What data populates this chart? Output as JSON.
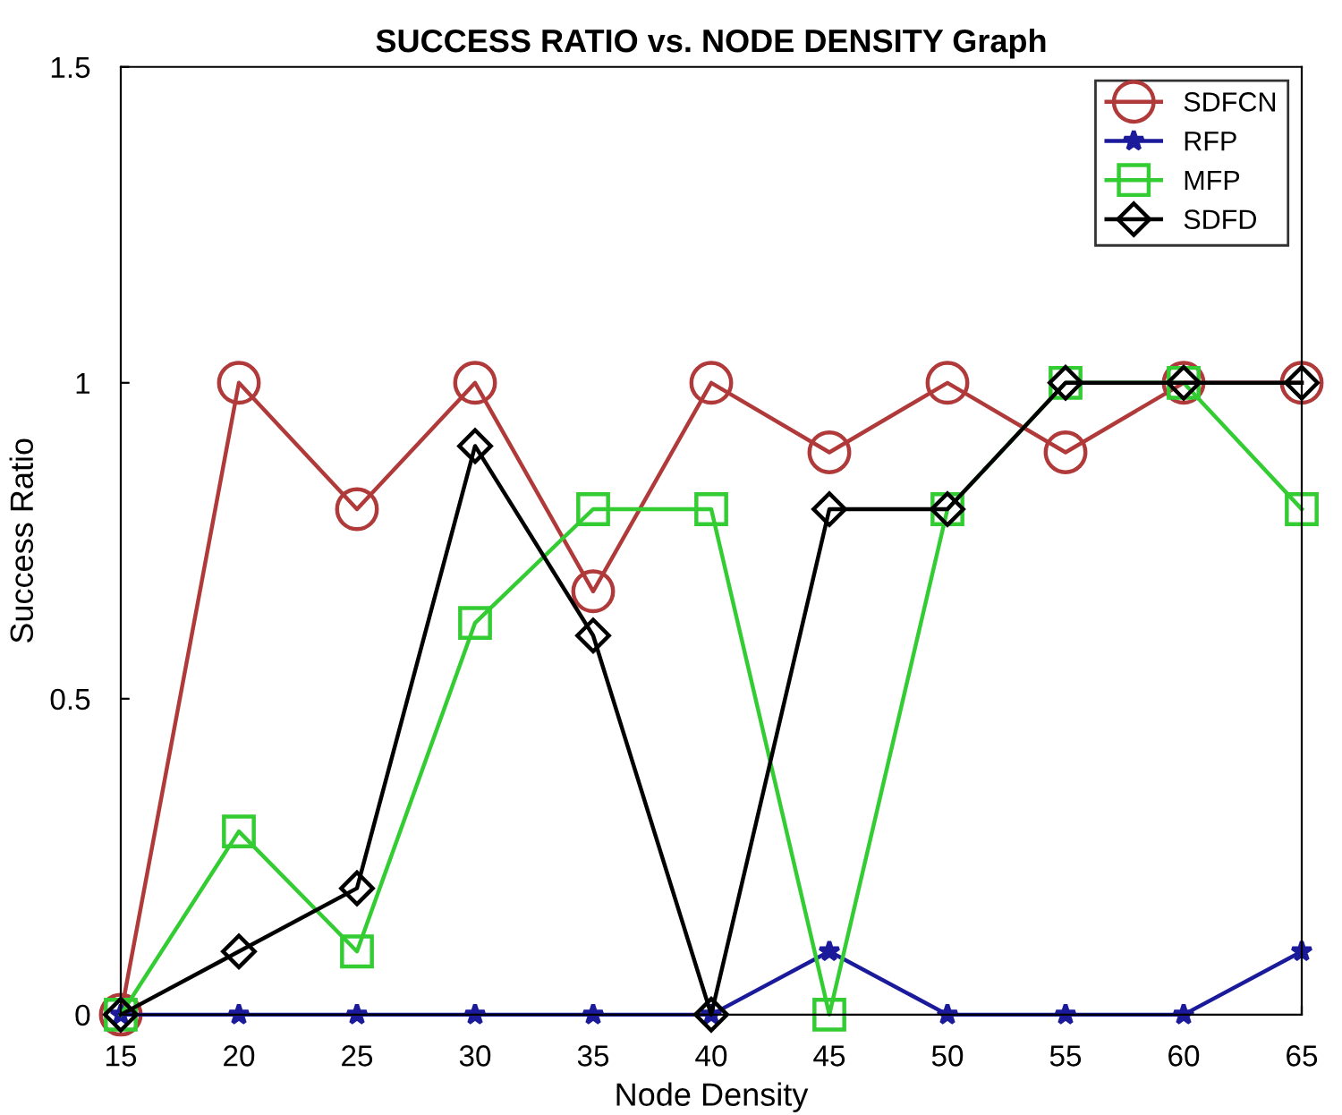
{
  "chart_data": {
    "type": "line",
    "title": "SUCCESS RATIO vs. NODE DENSITY Graph",
    "xlabel": "Node Density",
    "ylabel": "Success Ratio",
    "x": [
      15,
      20,
      25,
      30,
      35,
      40,
      45,
      50,
      55,
      60,
      65
    ],
    "series": [
      {
        "name": "SDFCN",
        "color": "#b03a3a",
        "marker": "circle",
        "values": [
          0,
          1,
          0.8,
          1,
          0.67,
          1,
          0.89,
          1,
          0.89,
          1,
          1
        ]
      },
      {
        "name": "RFP",
        "color": "#1a1a9a",
        "marker": "star",
        "values": [
          0,
          0,
          0,
          0,
          0,
          0,
          0.1,
          0,
          0,
          0,
          0.1
        ]
      },
      {
        "name": "MFP",
        "color": "#33cc33",
        "marker": "square",
        "values": [
          0,
          0.29,
          0.1,
          0.62,
          0.8,
          0.8,
          0,
          0.8,
          1,
          1,
          0.8
        ]
      },
      {
        "name": "SDFD",
        "color": "#000000",
        "marker": "diamond",
        "values": [
          0,
          0.1,
          0.2,
          0.9,
          0.6,
          0,
          0.8,
          0.8,
          1,
          1,
          1
        ]
      }
    ],
    "xlim": [
      15,
      65
    ],
    "ylim": [
      0,
      1.5
    ],
    "xticks": [
      15,
      20,
      25,
      30,
      35,
      40,
      45,
      50,
      55,
      60,
      65
    ],
    "yticks": [
      0,
      0.5,
      1,
      1.5
    ],
    "grid": false,
    "legend": "top right",
    "line_style": "solid"
  }
}
